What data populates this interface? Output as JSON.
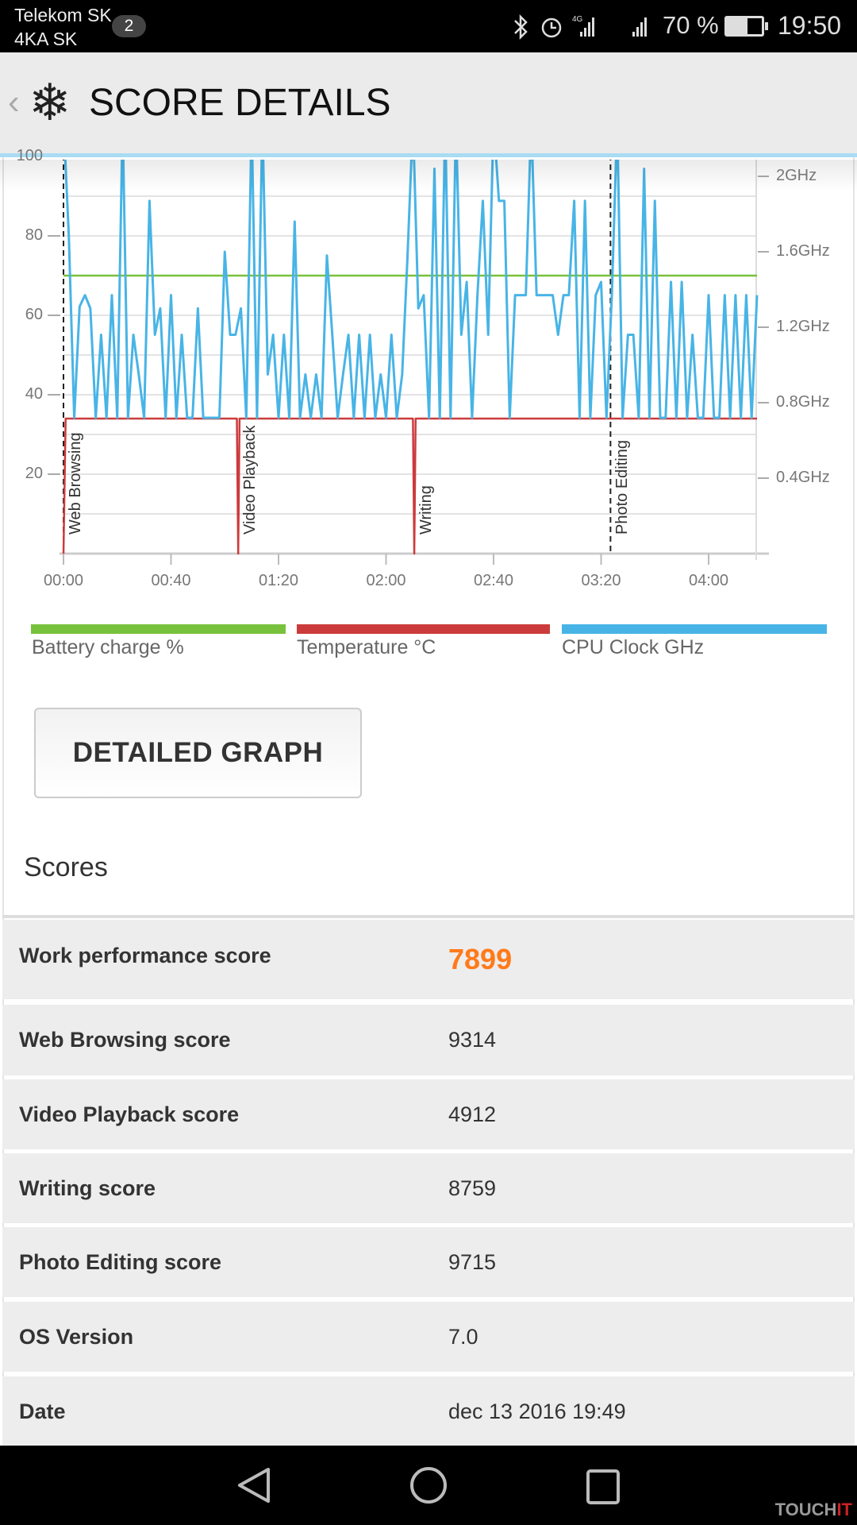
{
  "status_bar": {
    "carrier1": "Telekom SK",
    "carrier2": "4KA SK",
    "notification_count": "2",
    "battery": "70 %",
    "time": "19:50"
  },
  "header": {
    "title": "SCORE DETAILS",
    "back_icon": "chevron-left-icon",
    "app_icon": "snowflake-icon"
  },
  "chart_data": {
    "type": "line",
    "left_axis": {
      "ticks": [
        "20",
        "40",
        "60",
        "80",
        "100"
      ],
      "range": [
        0,
        100
      ]
    },
    "right_axis": {
      "ticks": [
        "0.4GHz",
        "0.8GHz",
        "1.2GHz",
        "1.6GHz",
        "2GHz"
      ],
      "range_ghz": [
        0,
        2.1
      ]
    },
    "x_ticks": [
      "00:00",
      "00:40",
      "01:20",
      "02:00",
      "02:40",
      "03:20",
      "04:00"
    ],
    "x_range_minutes": [
      0,
      258
    ],
    "grid": true,
    "segments": [
      {
        "label": "Web Browsing",
        "start_min": 0
      },
      {
        "label": "Video Playback",
        "start_min": 65
      },
      {
        "label": "Writing",
        "start_min": 130.5
      },
      {
        "label": "Photo Editing",
        "start_min": 203.5
      }
    ],
    "series": [
      {
        "name": "Battery charge %",
        "color": "#78c13c",
        "axis": "left",
        "x": [
          0,
          258
        ],
        "values": [
          70,
          70
        ]
      },
      {
        "name": "Temperature °C",
        "color": "#cc3b3b",
        "axis": "left",
        "x": [
          0,
          0.8,
          64.5,
          65,
          65.5,
          130,
          130.5,
          131,
          258
        ],
        "values": [
          0,
          34,
          34,
          0,
          34,
          34,
          0,
          34,
          34
        ]
      },
      {
        "name": "CPU Clock GHz",
        "color": "#48b4e6",
        "axis": "right",
        "step_min": 2,
        "values": [
          2.3,
          1.68,
          0.72,
          1.31,
          1.37,
          1.3,
          0.72,
          1.16,
          0.72,
          1.37,
          0.72,
          2.3,
          0.72,
          1.16,
          0.95,
          0.72,
          1.87,
          1.16,
          1.3,
          0.72,
          1.37,
          0.72,
          1.16,
          0.72,
          0.72,
          1.3,
          0.72,
          0.72,
          0.72,
          0.72,
          1.6,
          1.16,
          1.16,
          1.3,
          0.72,
          2.3,
          0.72,
          2.3,
          0.95,
          1.16,
          0.72,
          1.16,
          0.72,
          1.76,
          0.72,
          0.95,
          0.72,
          0.95,
          0.72,
          1.58,
          1.16,
          0.72,
          0.95,
          1.16,
          0.72,
          1.16,
          0.72,
          1.16,
          0.72,
          0.95,
          0.72,
          1.16,
          0.72,
          0.95,
          1.58,
          2.3,
          1.3,
          1.37,
          0.72,
          2.04,
          0.72,
          2.3,
          0.72,
          2.3,
          1.16,
          1.44,
          0.72,
          1.37,
          1.87,
          1.16,
          2.3,
          1.87,
          1.87,
          0.72,
          1.37,
          1.37,
          1.37,
          2.3,
          1.37,
          1.37,
          1.37,
          1.37,
          1.16,
          1.37,
          1.37,
          1.87,
          0.72,
          1.87,
          0.72,
          1.37,
          1.44,
          0.72,
          1.37,
          2.3,
          0.72,
          1.16,
          1.16,
          0.72,
          2.04,
          0.72,
          1.87,
          0.72,
          0.72,
          1.44,
          0.72,
          1.44,
          0.72,
          1.16,
          0.72,
          0.72,
          1.37,
          0.72,
          0.72,
          1.37,
          0.72,
          1.37,
          0.72,
          1.37,
          0.72,
          1.37
        ]
      }
    ]
  },
  "legend": [
    {
      "label": "Battery charge %",
      "color": "#78c13c"
    },
    {
      "label": "Temperature °C",
      "color": "#cc3b3b"
    },
    {
      "label": "CPU Clock GHz",
      "color": "#48b4e6"
    }
  ],
  "detailed_graph_label": "DETAILED GRAPH",
  "scores": {
    "heading": "Scores",
    "accent": "#ff7a1a",
    "rows": [
      {
        "label": "Work performance score",
        "value": "7899"
      },
      {
        "label": "Web Browsing score",
        "value": "9314"
      },
      {
        "label": "Video Playback score",
        "value": "4912"
      },
      {
        "label": "Writing score",
        "value": "8759"
      },
      {
        "label": "Photo Editing score",
        "value": "9715"
      },
      {
        "label": "OS Version",
        "value": "7.0"
      },
      {
        "label": "Date",
        "value": "dec 13 2016 19:49"
      }
    ]
  },
  "nav": {
    "back": "back-triangle-icon",
    "home": "home-circle-icon",
    "recents": "recents-square-icon"
  },
  "watermark": {
    "part1": "TOUCH",
    "part2": "IT"
  }
}
